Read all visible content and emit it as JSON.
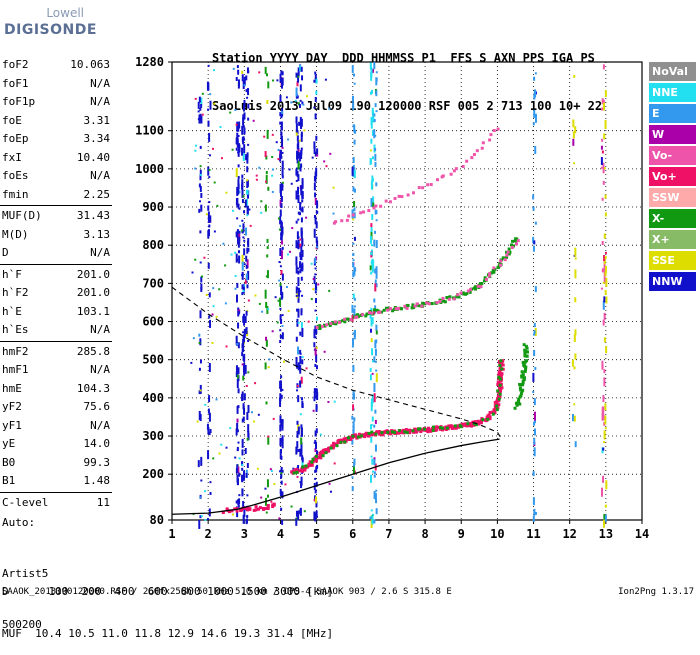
{
  "logo": {
    "line1": "Lowell",
    "line2": "DIGISONDE"
  },
  "header": {
    "line1": "Station YYYY DAY  DDD HHMMSS P1  FFS S AXN PPS IGA PS",
    "line2": "SaoLuis 2013 Jul09 190 120000 RSF 005 2 713 100 10+ 22"
  },
  "params": {
    "group1": [
      {
        "label": "foF2",
        "value": "10.063"
      },
      {
        "label": "foF1",
        "value": "N/A"
      },
      {
        "label": "foF1p",
        "value": "N/A"
      },
      {
        "label": "foE",
        "value": "3.31"
      },
      {
        "label": "foEp",
        "value": "3.34"
      },
      {
        "label": "fxI",
        "value": "10.40"
      },
      {
        "label": "foEs",
        "value": "N/A"
      },
      {
        "label": "fmin",
        "value": "2.25"
      }
    ],
    "group2": [
      {
        "label": "MUF(D)",
        "value": "31.43"
      },
      {
        "label": "M(D)",
        "value": "3.13"
      },
      {
        "label": "D",
        "value": "N/A"
      }
    ],
    "group3": [
      {
        "label": "h`F",
        "value": "201.0"
      },
      {
        "label": "h`F2",
        "value": "201.0"
      },
      {
        "label": "h`E",
        "value": "103.1"
      },
      {
        "label": "h`Es",
        "value": "N/A"
      }
    ],
    "group4": [
      {
        "label": "hmF2",
        "value": "285.8"
      },
      {
        "label": "hmF1",
        "value": "N/A"
      },
      {
        "label": "hmE",
        "value": "104.3"
      },
      {
        "label": "yF2",
        "value": "75.6"
      },
      {
        "label": "yF1",
        "value": "N/A"
      },
      {
        "label": "yE",
        "value": "14.0"
      },
      {
        "label": "B0",
        "value": "99.3"
      },
      {
        "label": "B1",
        "value": "1.48"
      }
    ],
    "group5": [
      {
        "label": "C-level",
        "value": "11"
      }
    ]
  },
  "auto": {
    "line1": "Auto:",
    "line2": "Artist5",
    "line3": "500200"
  },
  "legend": [
    {
      "label": "NoVal",
      "color": "#909090"
    },
    {
      "label": "NNE",
      "color": "#22e0f0"
    },
    {
      "label": "E",
      "color": "#3399ee"
    },
    {
      "label": "W",
      "color": "#aa00aa"
    },
    {
      "label": "Vo-",
      "color": "#ee55aa"
    },
    {
      "label": "Vo+",
      "color": "#ee1166"
    },
    {
      "label": "SSW",
      "color": "#ffaaaa"
    },
    {
      "label": "X-",
      "color": "#119911"
    },
    {
      "label": "X+",
      "color": "#88bb66"
    },
    {
      "label": "SSE",
      "color": "#dddd00"
    },
    {
      "label": "NNW",
      "color": "#1111cc"
    }
  ],
  "muf_table": {
    "d_line": "D      100  200  400  600  800 1000 1500 3000 [km]",
    "muf_line": "MUF  10.4 10.5 11.0 11.8 12.9 14.6 19.3 31.4 [MHz]"
  },
  "footer": {
    "left": "SAAOK_2013190120000.RSF / 260fx256h 50 kHz 5.0 km / DPS-4 SAAOK 903 / 2.6 S 315.8 E",
    "right": "Ion2Png 1.3.17"
  },
  "chart_data": {
    "type": "scatter",
    "xlim": [
      1,
      14
    ],
    "ylim": [
      80,
      1280
    ],
    "x_ticks": [
      "1",
      "2",
      "3",
      "4",
      "5",
      "6",
      "7",
      "8",
      "9",
      "10",
      "11",
      "12",
      "13",
      "14"
    ],
    "y_ticks": [
      "80",
      "200",
      "300",
      "400",
      "500",
      "600",
      "700",
      "800",
      "900",
      "1000",
      "1100",
      "1280"
    ],
    "o_trace": [
      [
        4.3,
        208
      ],
      [
        4.6,
        218
      ],
      [
        4.9,
        240
      ],
      [
        5.2,
        265
      ],
      [
        5.6,
        288
      ],
      [
        6.0,
        302
      ],
      [
        6.5,
        310
      ],
      [
        7.0,
        314
      ],
      [
        7.5,
        317
      ],
      [
        8.0,
        320
      ],
      [
        8.5,
        325
      ],
      [
        9.0,
        330
      ],
      [
        9.4,
        338
      ],
      [
        9.7,
        352
      ],
      [
        9.9,
        375
      ],
      [
        10.0,
        410
      ],
      [
        10.05,
        450
      ],
      [
        10.07,
        500
      ]
    ],
    "x_trace": [
      [
        5.0,
        590
      ],
      [
        5.5,
        600
      ],
      [
        6.0,
        615
      ],
      [
        6.5,
        628
      ],
      [
        7.0,
        636
      ],
      [
        7.5,
        642
      ],
      [
        8.0,
        650
      ],
      [
        8.5,
        660
      ],
      [
        9.0,
        675
      ],
      [
        9.5,
        700
      ],
      [
        10.0,
        750
      ],
      [
        10.3,
        790
      ],
      [
        10.5,
        820
      ]
    ],
    "o_trace_2": [
      [
        5.4,
        860
      ],
      [
        6.0,
        880
      ],
      [
        6.5,
        900
      ],
      [
        7.0,
        920
      ],
      [
        7.5,
        940
      ],
      [
        8.0,
        960
      ],
      [
        8.5,
        985
      ],
      [
        9.0,
        1010
      ],
      [
        9.5,
        1060
      ],
      [
        10.0,
        1110
      ]
    ],
    "x_trace_2": [
      [
        10.5,
        380
      ],
      [
        10.6,
        420
      ],
      [
        10.7,
        480
      ],
      [
        10.75,
        540
      ]
    ],
    "density_profile": [
      [
        1.0,
        95
      ],
      [
        2.0,
        98
      ],
      [
        2.8,
        108
      ],
      [
        3.2,
        118
      ],
      [
        4.0,
        140
      ],
      [
        5.0,
        170
      ],
      [
        6.0,
        200
      ],
      [
        7.0,
        230
      ],
      [
        8.0,
        255
      ],
      [
        9.0,
        275
      ],
      [
        9.6,
        285
      ],
      [
        10.06,
        292
      ]
    ],
    "dashed_profile": [
      [
        1.0,
        690
      ],
      [
        2.0,
        620
      ],
      [
        3.0,
        560
      ],
      [
        4.0,
        505
      ],
      [
        5.0,
        455
      ],
      [
        6.0,
        420
      ],
      [
        7.0,
        395
      ],
      [
        8.0,
        370
      ],
      [
        9.0,
        345
      ],
      [
        9.5,
        330
      ],
      [
        10.0,
        310
      ],
      [
        10.1,
        295
      ]
    ]
  }
}
